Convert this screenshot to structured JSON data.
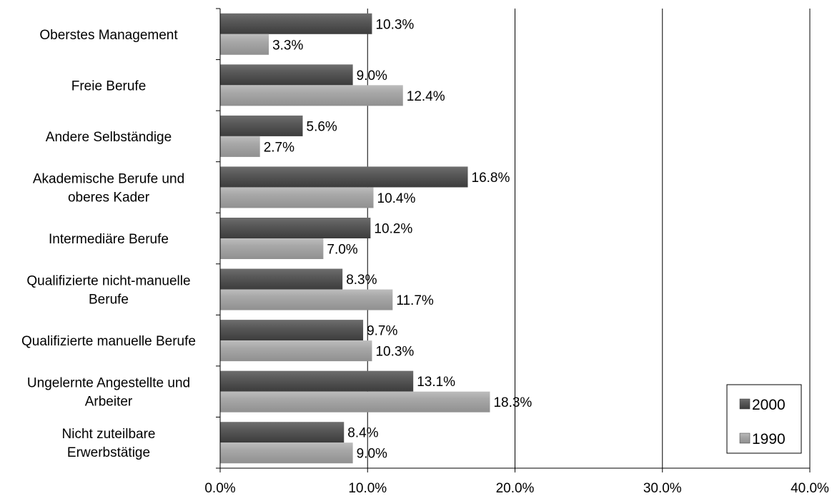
{
  "chart_data": {
    "type": "bar",
    "orientation": "horizontal",
    "categories": [
      [
        "Oberstes Management"
      ],
      [
        "Freie Berufe"
      ],
      [
        "Andere Selbständige"
      ],
      [
        "Akademische Berufe und",
        "oberes Kader"
      ],
      [
        "Intermediäre Berufe"
      ],
      [
        "Qualifizierte nicht-manuelle",
        "Berufe"
      ],
      [
        "Qualifizierte manuelle Berufe"
      ],
      [
        "Ungelernte Angestellte und",
        "Arbeiter"
      ],
      [
        "Nicht zuteilbare",
        "Erwerbstätige"
      ]
    ],
    "series": [
      {
        "name": "2000",
        "color": "#575757",
        "values": [
          10.3,
          9.0,
          5.6,
          16.8,
          10.2,
          8.3,
          9.7,
          13.1,
          8.4
        ],
        "labels": [
          "10.3%",
          "9.0%",
          "5.6%",
          "16.8%",
          "10.2%",
          "8.3%",
          "9.7%",
          "13.1%",
          "8.4%"
        ]
      },
      {
        "name": "1990",
        "color": "#a6a6a6",
        "values": [
          3.3,
          12.4,
          2.7,
          10.4,
          7.0,
          11.7,
          10.3,
          18.3,
          9.0
        ],
        "labels": [
          "3.3%",
          "12.4%",
          "2.7%",
          "10.4%",
          "7.0%",
          "11.7%",
          "10.3%",
          "18.3%",
          "9.0%"
        ]
      }
    ],
    "xlim": [
      0,
      40
    ],
    "xticks": [
      0,
      10,
      20,
      30,
      40
    ],
    "xtick_labels": [
      "0.0%",
      "10.0%",
      "20.0%",
      "30.0%",
      "40.0%"
    ],
    "grid": "vertical",
    "legend_position": "bottom-right",
    "title": "",
    "xlabel": "",
    "ylabel": ""
  }
}
